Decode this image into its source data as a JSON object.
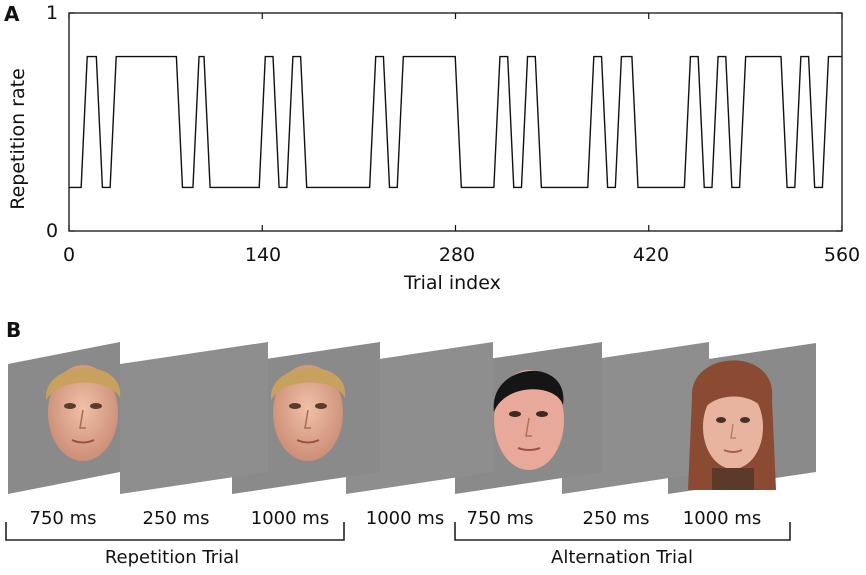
{
  "panel_a_label": "A",
  "panel_b_label": "B",
  "chart_data": {
    "type": "line",
    "title": "",
    "xlabel": "Trial index",
    "ylabel": "Repetition rate",
    "xlim": [
      0,
      560
    ],
    "ylim": [
      0,
      1
    ],
    "xticks": [
      0,
      140,
      280,
      420,
      560
    ],
    "yticks": [
      0,
      1
    ],
    "xtick_labels": [
      "0",
      "140",
      "280",
      "420",
      "560"
    ],
    "ytick_labels": [
      "0",
      "1"
    ],
    "grid": false,
    "series": [
      {
        "name": "Repetition rate",
        "levels": {
          "low": 0.2,
          "high": 0.8
        },
        "step_x": [
          0,
          11,
          22,
          32,
          80,
          92,
          100,
          140,
          150,
          160,
          170,
          220,
          230,
          240,
          282,
          310,
          320,
          330,
          340,
          378,
          388,
          398,
          410,
          448,
          458,
          468,
          478,
          488,
          518,
          528,
          538,
          548,
          560
        ],
        "step_y": [
          0.2,
          0.8,
          0.2,
          0.8,
          0.2,
          0.8,
          0.2,
          0.8,
          0.2,
          0.8,
          0.2,
          0.8,
          0.2,
          0.8,
          0.2,
          0.8,
          0.2,
          0.8,
          0.2,
          0.8,
          0.2,
          0.8,
          0.2,
          0.8,
          0.2,
          0.8,
          0.2,
          0.8,
          0.2,
          0.8,
          0.2,
          0.8,
          0.2
        ]
      }
    ]
  },
  "panel_b": {
    "durations": [
      "750 ms",
      "250 ms",
      "1000 ms",
      "1000 ms",
      "750 ms",
      "250 ms",
      "1000 ms"
    ],
    "frames": [
      "face-blond-male",
      "blank",
      "face-blond-male",
      "blank",
      "face-dark-hair-male",
      "blank",
      "face-long-hair-female"
    ],
    "repetition_label": "Repetition Trial",
    "alternation_label": "Alternation Trial",
    "colors": {
      "panel_gray": "#8a8a8a",
      "skin": "#e2a88f",
      "blond_hair": "#c9a15e",
      "dark_hair": "#151515",
      "auburn_hair": "#8b4a32"
    }
  }
}
